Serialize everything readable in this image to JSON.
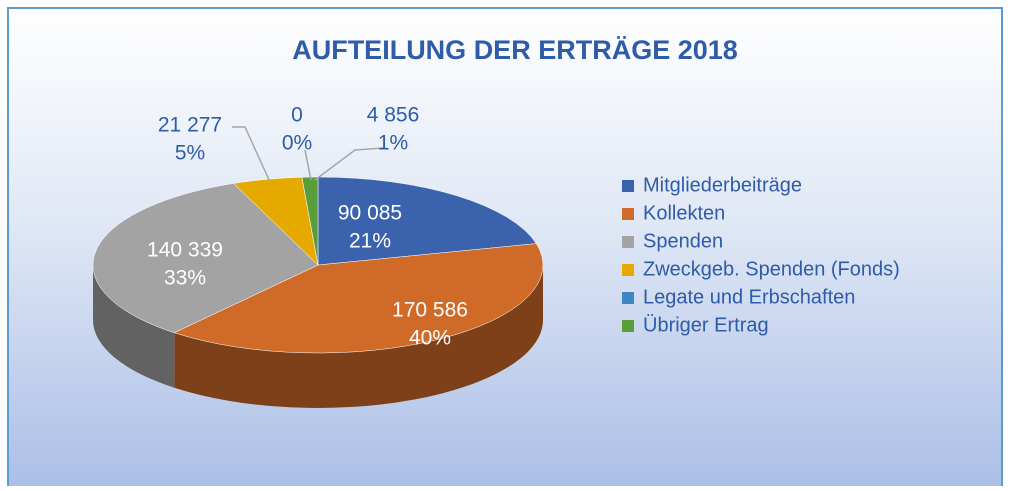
{
  "chart_data": {
    "type": "pie3d",
    "title": "AUFTEILUNG DER ERTRÄGE 2018",
    "categories": [
      "Mitgliederbeiträge",
      "Kollekten",
      "Spenden",
      "Zweckgeb. Spenden (Fonds)",
      "Legate und Erbschaften",
      "Übriger Ertrag"
    ],
    "values": [
      90085,
      170586,
      140339,
      21277,
      0,
      4856
    ],
    "value_labels": [
      "90 085",
      "170 586",
      "140 339",
      "21 277",
      "0",
      "4 856"
    ],
    "percent_labels": [
      "21%",
      "40%",
      "33%",
      "5%",
      "0%",
      "1%"
    ],
    "colors": [
      "#3a62ad",
      "#d06a28",
      "#a3a3a3",
      "#e5a900",
      "#3f87c4",
      "#5a9e3a"
    ],
    "legend": "right"
  }
}
